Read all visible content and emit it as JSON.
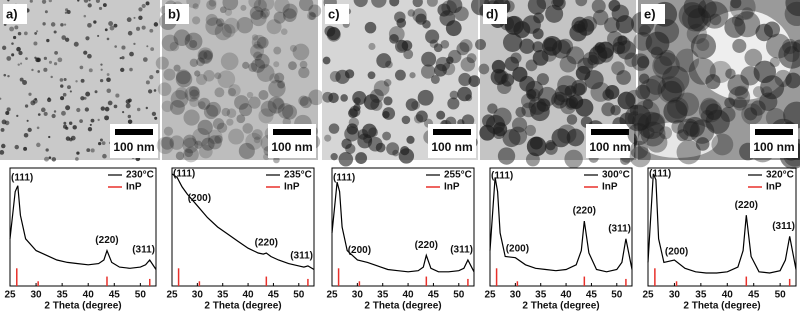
{
  "panels": [
    {
      "label": "a)",
      "scale_bar": "100 nm"
    },
    {
      "label": "b)",
      "scale_bar": "100 nm"
    },
    {
      "label": "c)",
      "scale_bar": "100 nm"
    },
    {
      "label": "d)",
      "scale_bar": "100 nm"
    },
    {
      "label": "e)",
      "scale_bar": "100 nm"
    }
  ],
  "chart_data": [
    {
      "type": "line",
      "x_label": "2 Theta (degree)",
      "xlim": [
        25,
        53
      ],
      "xticks": [
        25,
        30,
        35,
        40,
        45,
        50
      ],
      "ylim": [
        0,
        100
      ],
      "x": [
        25,
        26,
        26.5,
        27,
        28,
        30,
        32,
        34,
        36,
        38,
        40,
        42,
        43,
        43.6,
        44.5,
        46,
        48,
        50,
        51,
        51.8,
        53
      ],
      "series": [
        {
          "name": "230°C",
          "color": "#000000",
          "values": [
            40,
            80,
            85,
            60,
            40,
            30,
            26,
            22,
            20,
            19,
            18,
            19,
            22,
            30,
            20,
            16,
            15,
            16,
            18,
            22,
            14
          ]
        }
      ],
      "reference": {
        "name": "InP",
        "color": "#e8302a",
        "x": [
          26.3,
          30.4,
          43.6,
          51.8
        ],
        "values": [
          15,
          4,
          8,
          6
        ]
      },
      "annotations": [
        {
          "text": "(111)",
          "x": 26.3
        },
        {
          "text": "(220)",
          "x": 43.6
        },
        {
          "text": "(311)",
          "x": 51.8
        }
      ]
    },
    {
      "type": "line",
      "x_label": "2 Theta (degree)",
      "xlim": [
        25,
        53
      ],
      "xticks": [
        25,
        30,
        35,
        40,
        45,
        50
      ],
      "ylim": [
        0,
        100
      ],
      "x": [
        25,
        26,
        26.5,
        27,
        28,
        30,
        32,
        34,
        36,
        38,
        40,
        42,
        43,
        43.6,
        44.5,
        46,
        48,
        50,
        51,
        51.8,
        53
      ],
      "series": [
        {
          "name": "235°C",
          "color": "#000000",
          "values": [
            95,
            92,
            88,
            84,
            78,
            68,
            58,
            50,
            44,
            38,
            32,
            28,
            27,
            28,
            25,
            22,
            19,
            17,
            16,
            17,
            14
          ]
        }
      ],
      "reference": {
        "name": "InP",
        "color": "#e8302a",
        "x": [
          26.3,
          30.4,
          43.6,
          51.8
        ],
        "values": [
          15,
          4,
          8,
          6
        ]
      },
      "annotations": [
        {
          "text": "(111)",
          "x": 26.3
        },
        {
          "text": "(200)",
          "x": 30.4
        },
        {
          "text": "(220)",
          "x": 43.6
        },
        {
          "text": "(311)",
          "x": 51.8
        }
      ]
    },
    {
      "type": "line",
      "x_label": "2 Theta (degree)",
      "xlim": [
        25,
        53
      ],
      "xticks": [
        25,
        30,
        35,
        40,
        45,
        50
      ],
      "ylim": [
        0,
        100
      ],
      "x": [
        25,
        26,
        26.5,
        27,
        28,
        30,
        32,
        34,
        36,
        38,
        40,
        42,
        43,
        43.6,
        44.5,
        46,
        48,
        50,
        51,
        51.8,
        53
      ],
      "series": [
        {
          "name": "255°C",
          "color": "#000000",
          "values": [
            45,
            88,
            80,
            50,
            30,
            22,
            20,
            17,
            14,
            13,
            12,
            13,
            16,
            26,
            15,
            12,
            12,
            13,
            15,
            22,
            12
          ]
        }
      ],
      "reference": {
        "name": "InP",
        "color": "#e8302a",
        "x": [
          26.3,
          30.4,
          43.6,
          51.8
        ],
        "values": [
          15,
          4,
          8,
          6
        ]
      },
      "annotations": [
        {
          "text": "(111)",
          "x": 26.3
        },
        {
          "text": "(200)",
          "x": 30.4
        },
        {
          "text": "(220)",
          "x": 43.6
        },
        {
          "text": "(311)",
          "x": 51.8
        }
      ]
    },
    {
      "type": "line",
      "x_label": "2 Theta (degree)",
      "xlim": [
        25,
        53
      ],
      "xticks": [
        25,
        30,
        35,
        40,
        45,
        50
      ],
      "ylim": [
        0,
        100
      ],
      "x": [
        25,
        26,
        26.5,
        27,
        28,
        30,
        32,
        34,
        36,
        38,
        40,
        42,
        43,
        43.6,
        44.5,
        46,
        48,
        50,
        51,
        51.8,
        53
      ],
      "series": [
        {
          "name": "300°C",
          "color": "#000000",
          "values": [
            30,
            92,
            80,
            45,
            25,
            24,
            18,
            15,
            14,
            13,
            14,
            18,
            30,
            55,
            28,
            14,
            12,
            14,
            20,
            40,
            14
          ]
        }
      ],
      "reference": {
        "name": "InP",
        "color": "#e8302a",
        "x": [
          26.3,
          30.4,
          43.6,
          51.8
        ],
        "values": [
          15,
          4,
          8,
          6
        ]
      },
      "annotations": [
        {
          "text": "(111)",
          "x": 26.3
        },
        {
          "text": "(200)",
          "x": 30.4
        },
        {
          "text": "(220)",
          "x": 43.6
        },
        {
          "text": "(311)",
          "x": 51.8
        }
      ]
    },
    {
      "type": "line",
      "x_label": "2 Theta (degree)",
      "xlim": [
        25,
        53
      ],
      "xticks": [
        25,
        30,
        35,
        40,
        45,
        50
      ],
      "ylim": [
        0,
        100
      ],
      "x": [
        25,
        26,
        26.5,
        27,
        28,
        30,
        32,
        34,
        36,
        38,
        40,
        42,
        43,
        43.6,
        44.5,
        46,
        48,
        50,
        51,
        51.8,
        53
      ],
      "series": [
        {
          "name": "320°C",
          "color": "#000000",
          "values": [
            20,
            95,
            90,
            40,
            20,
            22,
            15,
            12,
            11,
            11,
            12,
            16,
            30,
            60,
            25,
            12,
            11,
            13,
            22,
            42,
            14
          ]
        }
      ],
      "reference": {
        "name": "InP",
        "color": "#e8302a",
        "x": [
          26.3,
          30.4,
          43.6,
          51.8
        ],
        "values": [
          15,
          4,
          8,
          6
        ]
      },
      "annotations": [
        {
          "text": "(111)",
          "x": 26.3
        },
        {
          "text": "(200)",
          "x": 30.4
        },
        {
          "text": "(220)",
          "x": 43.6
        },
        {
          "text": "(311)",
          "x": 51.8
        }
      ]
    }
  ]
}
